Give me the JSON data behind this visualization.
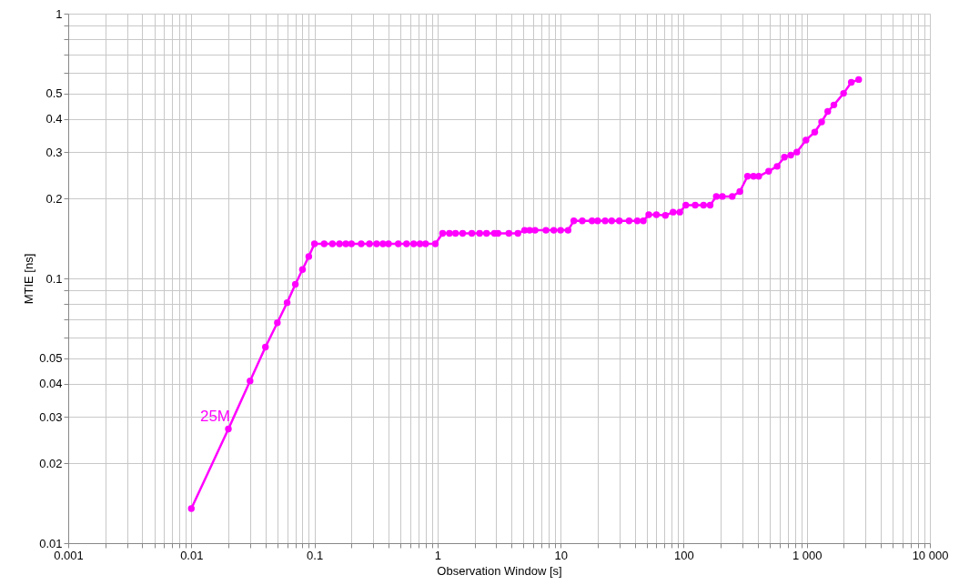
{
  "chart_data": {
    "type": "line",
    "xlabel": "Observation Window [s]",
    "ylabel": "MTIE [ns]",
    "log": "xy",
    "grid": true,
    "marker": "circle",
    "line_style": "solid",
    "xlim": [
      0.001,
      10000
    ],
    "ylim": [
      0.01,
      1
    ],
    "xticks": [
      0.001,
      {
        "value": 0.002,
        "label": null
      },
      {
        "value": 0.003,
        "label": null
      },
      {
        "value": 0.004,
        "label": null
      },
      {
        "value": 0.005,
        "label": null
      },
      {
        "value": 0.006,
        "label": null
      },
      {
        "value": 0.007,
        "label": null
      },
      {
        "value": 0.008,
        "label": null
      },
      {
        "value": 0.009,
        "label": null
      },
      0.01,
      {
        "value": 0.02,
        "label": null
      },
      {
        "value": 0.03,
        "label": null
      },
      {
        "value": 0.04,
        "label": null
      },
      {
        "value": 0.05,
        "label": null
      },
      {
        "value": 0.06,
        "label": null
      },
      {
        "value": 0.07,
        "label": null
      },
      {
        "value": 0.08,
        "label": null
      },
      {
        "value": 0.09,
        "label": null
      },
      0.1,
      {
        "value": 0.2,
        "label": null
      },
      {
        "value": 0.3,
        "label": null
      },
      {
        "value": 0.4,
        "label": null
      },
      {
        "value": 0.5,
        "label": null
      },
      {
        "value": 0.6,
        "label": null
      },
      {
        "value": 0.7,
        "label": null
      },
      {
        "value": 0.8,
        "label": null
      },
      {
        "value": 0.9,
        "label": null
      },
      1,
      {
        "value": 2,
        "label": null
      },
      {
        "value": 3,
        "label": null
      },
      {
        "value": 4,
        "label": null
      },
      {
        "value": 5,
        "label": null
      },
      {
        "value": 6,
        "label": null
      },
      {
        "value": 7,
        "label": null
      },
      {
        "value": 8,
        "label": null
      },
      {
        "value": 9,
        "label": null
      },
      10,
      {
        "value": 20,
        "label": null
      },
      {
        "value": 30,
        "label": null
      },
      {
        "value": 40,
        "label": null
      },
      {
        "value": 50,
        "label": null
      },
      {
        "value": 60,
        "label": null
      },
      {
        "value": 70,
        "label": null
      },
      {
        "value": 80,
        "label": null
      },
      {
        "value": 90,
        "label": null
      },
      100,
      {
        "value": 200,
        "label": null
      },
      {
        "value": 300,
        "label": null
      },
      {
        "value": 400,
        "label": null
      },
      {
        "value": 500,
        "label": null
      },
      {
        "value": 600,
        "label": null
      },
      {
        "value": 700,
        "label": null
      },
      {
        "value": 800,
        "label": null
      },
      {
        "value": 900,
        "label": null
      },
      {
        "value": 1000,
        "label": "1 000"
      },
      {
        "value": 2000,
        "label": null
      },
      {
        "value": 3000,
        "label": null
      },
      {
        "value": 4000,
        "label": null
      },
      {
        "value": 5000,
        "label": null
      },
      {
        "value": 6000,
        "label": null
      },
      {
        "value": 7000,
        "label": null
      },
      {
        "value": 8000,
        "label": null
      },
      {
        "value": 9000,
        "label": null
      },
      {
        "value": 10000,
        "label": "10 000"
      }
    ],
    "yticks": [
      0.01,
      0.02,
      0.03,
      0.04,
      0.05,
      {
        "value": 0.06,
        "label": null
      },
      {
        "value": 0.07,
        "label": null
      },
      {
        "value": 0.08,
        "label": null
      },
      {
        "value": 0.09,
        "label": null
      },
      0.1,
      0.2,
      0.3,
      0.4,
      0.5,
      {
        "value": 0.6,
        "label": null
      },
      {
        "value": 0.7,
        "label": null
      },
      {
        "value": 0.8,
        "label": null
      },
      {
        "value": 0.9,
        "label": null
      },
      1
    ],
    "series": [
      {
        "name": "25M",
        "color": "#ff00ff",
        "x": [
          0.01,
          0.02,
          0.03,
          0.04,
          0.05,
          0.06,
          0.07,
          0.08,
          0.09,
          0.1,
          0.12,
          0.14,
          0.16,
          0.18,
          0.2,
          0.24,
          0.28,
          0.32,
          0.36,
          0.4,
          0.48,
          0.56,
          0.64,
          0.72,
          0.8,
          0.96,
          1.1,
          1.25,
          1.4,
          1.6,
          1.9,
          2.2,
          2.5,
          2.9,
          3.1,
          3.8,
          4.5,
          5.1,
          5.6,
          6.2,
          7.6,
          8.8,
          10,
          11.5,
          12.8,
          15,
          18,
          20,
          23,
          26,
          30,
          36,
          42,
          47,
          52,
          60,
          71,
          82,
          93,
          104,
          124,
          145,
          164,
          184,
          206,
          248,
          286,
          330,
          369,
          407,
          490,
          574,
          658,
          741,
          830,
          985,
          1160,
          1320,
          1480,
          1660,
          1990,
          2300,
          2640
        ],
        "values": [
          0.0135,
          0.027,
          0.041,
          0.055,
          0.068,
          0.081,
          0.095,
          0.108,
          0.121,
          0.135,
          0.135,
          0.135,
          0.135,
          0.135,
          0.135,
          0.135,
          0.135,
          0.135,
          0.135,
          0.135,
          0.135,
          0.135,
          0.135,
          0.135,
          0.135,
          0.135,
          0.148,
          0.148,
          0.148,
          0.148,
          0.148,
          0.148,
          0.148,
          0.148,
          0.148,
          0.148,
          0.148,
          0.152,
          0.152,
          0.152,
          0.152,
          0.152,
          0.152,
          0.152,
          0.165,
          0.165,
          0.165,
          0.165,
          0.165,
          0.165,
          0.165,
          0.165,
          0.165,
          0.165,
          0.174,
          0.174,
          0.173,
          0.178,
          0.178,
          0.189,
          0.189,
          0.189,
          0.189,
          0.204,
          0.204,
          0.204,
          0.213,
          0.243,
          0.243,
          0.243,
          0.254,
          0.265,
          0.287,
          0.292,
          0.3,
          0.333,
          0.357,
          0.39,
          0.427,
          0.452,
          0.5,
          0.55,
          0.564
        ]
      }
    ]
  }
}
